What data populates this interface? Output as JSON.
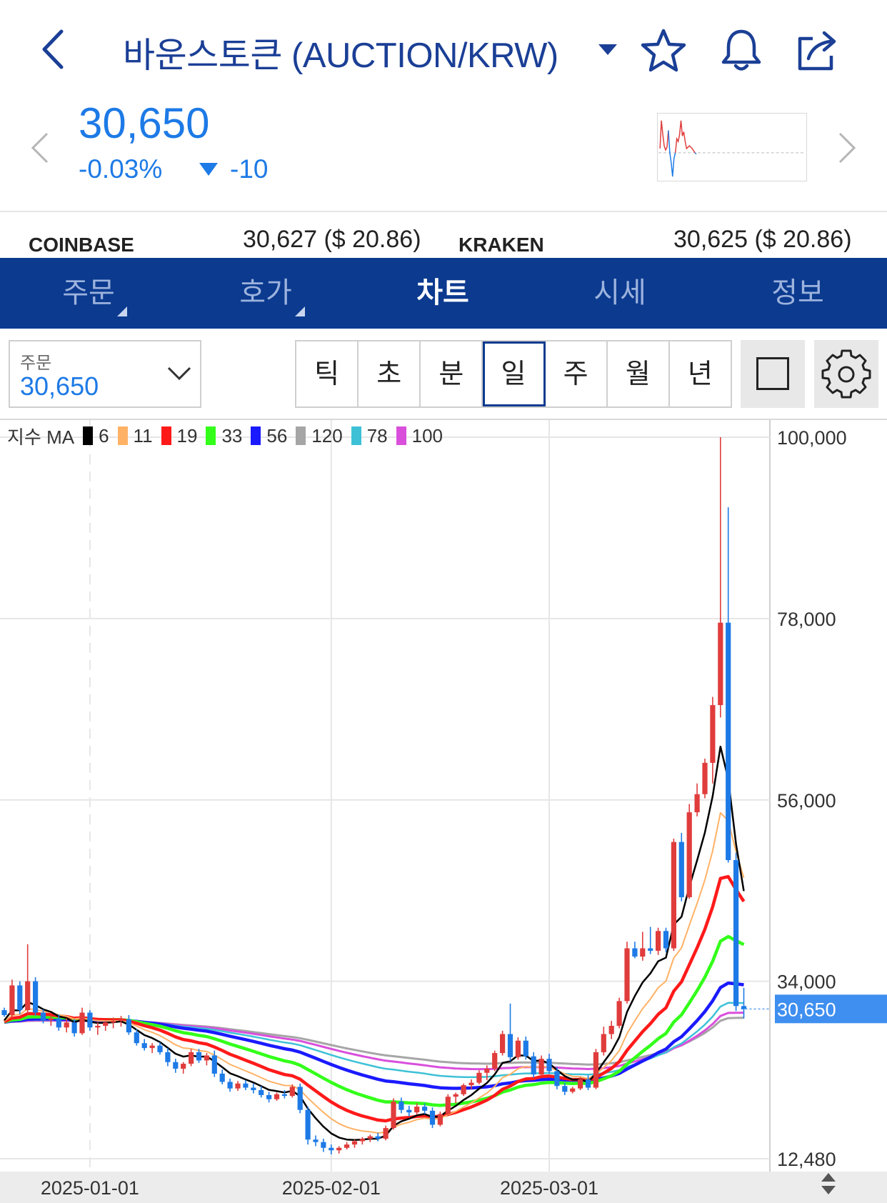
{
  "header": {
    "title": "바운스토큰 (AUCTION/KRW)",
    "back_icon": "chevron-left-icon",
    "icons": [
      "star-icon",
      "bell-icon",
      "share-icon"
    ]
  },
  "price": {
    "current": "30,650",
    "change_pct": "-0.03%",
    "change_abs": "-10",
    "color": "#1d7ae6"
  },
  "exchanges": [
    {
      "name": "COINBASE",
      "price": "30,627 ($ 20.86)"
    },
    {
      "name": "KRAKEN",
      "price": "30,625 ($ 20.86)"
    }
  ],
  "tabs": [
    {
      "label": "주문",
      "active": false,
      "has_menu": true
    },
    {
      "label": "호가",
      "active": false,
      "has_menu": true
    },
    {
      "label": "차트",
      "active": true,
      "has_menu": false
    },
    {
      "label": "시세",
      "active": false,
      "has_menu": false
    },
    {
      "label": "정보",
      "active": false,
      "has_menu": false
    }
  ],
  "order": {
    "label": "주문",
    "value": "30,650"
  },
  "periods": [
    {
      "label": "틱",
      "selected": false
    },
    {
      "label": "초",
      "selected": false
    },
    {
      "label": "분",
      "selected": false
    },
    {
      "label": "일",
      "selected": true
    },
    {
      "label": "주",
      "selected": false
    },
    {
      "label": "월",
      "selected": false
    },
    {
      "label": "년",
      "selected": false
    }
  ],
  "legend": {
    "prefix": "지수 MA",
    "items": [
      {
        "period": "6",
        "color": "#000000"
      },
      {
        "period": "11",
        "color": "#ffb266"
      },
      {
        "period": "19",
        "color": "#ff1a1a"
      },
      {
        "period": "33",
        "color": "#33ff1a"
      },
      {
        "period": "56",
        "color": "#1a1aff"
      },
      {
        "period": "120",
        "color": "#a6a6a6"
      },
      {
        "period": "78",
        "color": "#3ec1d6"
      },
      {
        "period": "100",
        "color": "#d94fdc"
      }
    ]
  },
  "chart_data": {
    "type": "candlestick",
    "y_ticks": [
      "100,000",
      "78,000",
      "56,000",
      "34,000",
      "12,480"
    ],
    "y_tick_values": [
      100000,
      78000,
      56000,
      34000,
      12480
    ],
    "ylim": [
      12480,
      100000
    ],
    "x_labels": [
      "2025-01-01",
      "2025-02-01",
      "2025-03-01"
    ],
    "current_price_label": "30,650",
    "current_price": 30650,
    "up_color": "#e03c3c",
    "down_color": "#1d7ae6",
    "candles": [
      [
        30500,
        30800,
        29700,
        29900
      ],
      [
        29900,
        34200,
        29500,
        33500
      ],
      [
        33500,
        34000,
        30000,
        30500
      ],
      [
        30500,
        38500,
        30000,
        34000
      ],
      [
        34000,
        34500,
        29800,
        30200
      ],
      [
        30200,
        30600,
        28900,
        29300
      ],
      [
        29300,
        29900,
        28600,
        29500
      ],
      [
        29500,
        30000,
        28000,
        28400
      ],
      [
        28400,
        29500,
        27800,
        29000
      ],
      [
        29000,
        29400,
        27300,
        27700
      ],
      [
        27700,
        30800,
        27500,
        30200
      ],
      [
        30200,
        30500,
        28000,
        28400
      ],
      [
        28400,
        29000,
        27500,
        28600
      ],
      [
        28600,
        29200,
        28000,
        29000
      ],
      [
        29000,
        29600,
        28300,
        29200
      ],
      [
        29200,
        29800,
        28500,
        29400
      ],
      [
        29400,
        29900,
        27500,
        27800
      ],
      [
        27800,
        28200,
        26200,
        26500
      ],
      [
        26500,
        27000,
        25600,
        25900
      ],
      [
        25900,
        26500,
        25300,
        26200
      ],
      [
        26200,
        26600,
        25100,
        25400
      ],
      [
        25400,
        25900,
        23700,
        24200
      ],
      [
        24200,
        24600,
        22900,
        23400
      ],
      [
        23400,
        24200,
        22800,
        24000
      ],
      [
        24000,
        25800,
        23700,
        25400
      ],
      [
        25400,
        25800,
        24100,
        24400
      ],
      [
        24400,
        25300,
        23800,
        25000
      ],
      [
        25000,
        25600,
        22400,
        22800
      ],
      [
        22800,
        23300,
        21500,
        21800
      ],
      [
        21800,
        22200,
        20600,
        21000
      ],
      [
        21000,
        21900,
        20700,
        21600
      ],
      [
        21600,
        22000,
        20800,
        21100
      ],
      [
        21100,
        21600,
        20400,
        20800
      ],
      [
        20800,
        21300,
        19900,
        20200
      ],
      [
        20200,
        20600,
        19300,
        19700
      ],
      [
        19700,
        20500,
        19500,
        20300
      ],
      [
        20300,
        20800,
        19800,
        20100
      ],
      [
        20100,
        21500,
        19900,
        21200
      ],
      [
        21200,
        21600,
        18000,
        18400
      ],
      [
        18400,
        18800,
        14200,
        14800
      ],
      [
        14800,
        15300,
        14000,
        14500
      ],
      [
        14500,
        14900,
        13300,
        13800
      ],
      [
        13800,
        14200,
        13000,
        13500
      ],
      [
        13500,
        14000,
        13100,
        13800
      ],
      [
        13800,
        14500,
        13600,
        14200
      ],
      [
        14200,
        14800,
        13800,
        14600
      ],
      [
        14600,
        15100,
        14200,
        14900
      ],
      [
        14900,
        15400,
        14500,
        15200
      ],
      [
        15200,
        15600,
        14600,
        14900
      ],
      [
        14900,
        16500,
        14700,
        16200
      ],
      [
        16200,
        19800,
        16000,
        19400
      ],
      [
        19400,
        19900,
        18000,
        18400
      ],
      [
        18400,
        18900,
        17600,
        18100
      ],
      [
        18100,
        19200,
        17800,
        18800
      ],
      [
        18800,
        19200,
        17900,
        18300
      ],
      [
        18300,
        18700,
        16200,
        16600
      ],
      [
        16600,
        18200,
        16400,
        17900
      ],
      [
        17900,
        20300,
        17700,
        20000
      ],
      [
        20000,
        20500,
        19200,
        20300
      ],
      [
        20300,
        21600,
        20100,
        21400
      ],
      [
        21400,
        22100,
        20900,
        21700
      ],
      [
        21700,
        23200,
        21500,
        22900
      ],
      [
        22900,
        23800,
        22000,
        23400
      ],
      [
        23400,
        25600,
        23100,
        25300
      ],
      [
        25300,
        28000,
        25000,
        27600
      ],
      [
        27600,
        31300,
        24300,
        24800
      ],
      [
        24800,
        27200,
        24500,
        26800
      ],
      [
        26800,
        27300,
        24500,
        24900
      ],
      [
        24900,
        25400,
        22300,
        22700
      ],
      [
        22700,
        25000,
        22500,
        24600
      ],
      [
        24600,
        25200,
        22800,
        23100
      ],
      [
        23100,
        23600,
        20900,
        21300
      ],
      [
        21300,
        21700,
        20200,
        20600
      ],
      [
        20600,
        21200,
        20400,
        21000
      ],
      [
        21000,
        22400,
        20800,
        22100
      ],
      [
        22100,
        22600,
        20800,
        21100
      ],
      [
        21100,
        25800,
        20900,
        25400
      ],
      [
        25400,
        28500,
        25000,
        27600
      ],
      [
        27600,
        29200,
        27000,
        28600
      ],
      [
        28600,
        32000,
        28300,
        31600
      ],
      [
        31600,
        38800,
        31300,
        38000
      ],
      [
        38000,
        38800,
        36800,
        37000
      ],
      [
        37000,
        40000,
        36500,
        38000
      ],
      [
        38000,
        40600,
        37300,
        37700
      ],
      [
        37700,
        40500,
        37200,
        40100
      ],
      [
        40100,
        40500,
        37500,
        38000
      ],
      [
        38000,
        51300,
        37700,
        50900
      ],
      [
        50900,
        52000,
        43700,
        44200
      ],
      [
        44200,
        55500,
        44000,
        54500
      ],
      [
        54500,
        58000,
        54000,
        56700
      ],
      [
        56700,
        61000,
        56200,
        60500
      ],
      [
        60500,
        68500,
        58000,
        67500
      ],
      [
        67500,
        100000,
        66000,
        77500
      ],
      [
        77500,
        91500,
        48400,
        48700
      ],
      [
        48700,
        49600,
        30400,
        31000
      ],
      [
        31000,
        33200,
        29500,
        30650
      ]
    ]
  }
}
